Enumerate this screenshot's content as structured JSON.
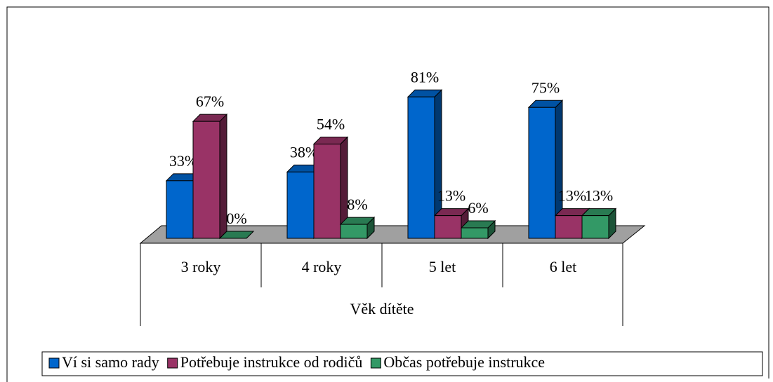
{
  "chart_data": {
    "type": "bar3d",
    "categories": [
      "3 roky",
      "4 roky",
      "5 let",
      "6 let"
    ],
    "xlabel": "Věk dítěte",
    "ylim": [
      0,
      100
    ],
    "legend": "bottom",
    "series": [
      {
        "name": "Ví si samo rady",
        "color": "#0066cc",
        "values": [
          33,
          38,
          81,
          75
        ],
        "value_labels": [
          "33%",
          "38%",
          "81%",
          "75%"
        ]
      },
      {
        "name": "Potřebuje instrukce od rodičů",
        "color": "#993366",
        "values": [
          67,
          54,
          13,
          13
        ],
        "value_labels": [
          "67%",
          "54%",
          "13%",
          "13%"
        ]
      },
      {
        "name": "Občas potřebuje instrukce",
        "color": "#339966",
        "values": [
          0,
          8,
          6,
          13
        ],
        "value_labels": [
          "0%",
          "8%",
          "6%",
          "13%"
        ]
      }
    ]
  }
}
